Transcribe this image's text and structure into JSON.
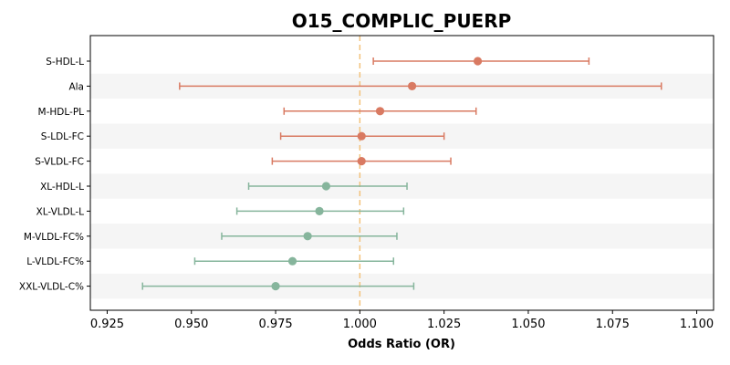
{
  "chart_data": {
    "type": "forest",
    "title": "O15_COMPLIC_PUERP",
    "xlabel": "Odds Ratio (OR)",
    "ylabel": "",
    "xlim": [
      0.92,
      1.105
    ],
    "xticks": [
      "0.925",
      "0.950",
      "0.975",
      "1.000",
      "1.025",
      "1.050",
      "1.075",
      "1.100"
    ],
    "reference_line": 1.0,
    "grid": false,
    "colors": {
      "positive": "#d97a62",
      "negative": "#86b59c",
      "reference": "#f2c27a",
      "band": "#f5f5f5"
    },
    "rows": [
      {
        "label": "S-HDL-L",
        "or": 1.035,
        "lower": 1.004,
        "upper": 1.068,
        "direction": "positive"
      },
      {
        "label": "Ala",
        "or": 1.0155,
        "lower": 0.9465,
        "upper": 1.0895,
        "direction": "positive"
      },
      {
        "label": "M-HDL-PL",
        "or": 1.006,
        "lower": 0.9775,
        "upper": 1.0345,
        "direction": "positive"
      },
      {
        "label": "S-LDL-FC",
        "or": 1.0005,
        "lower": 0.9765,
        "upper": 1.025,
        "direction": "positive"
      },
      {
        "label": "S-VLDL-FC",
        "or": 1.0005,
        "lower": 0.974,
        "upper": 1.027,
        "direction": "positive"
      },
      {
        "label": "XL-HDL-L",
        "or": 0.99,
        "lower": 0.967,
        "upper": 1.014,
        "direction": "negative"
      },
      {
        "label": "XL-VLDL-L",
        "or": 0.988,
        "lower": 0.9635,
        "upper": 1.013,
        "direction": "negative"
      },
      {
        "label": "M-VLDL-FC%",
        "or": 0.9845,
        "lower": 0.959,
        "upper": 1.011,
        "direction": "negative"
      },
      {
        "label": "L-VLDL-FC%",
        "or": 0.98,
        "lower": 0.951,
        "upper": 1.01,
        "direction": "negative"
      },
      {
        "label": "XXL-VLDL-C%",
        "or": 0.975,
        "lower": 0.9355,
        "upper": 1.016,
        "direction": "negative"
      }
    ]
  }
}
